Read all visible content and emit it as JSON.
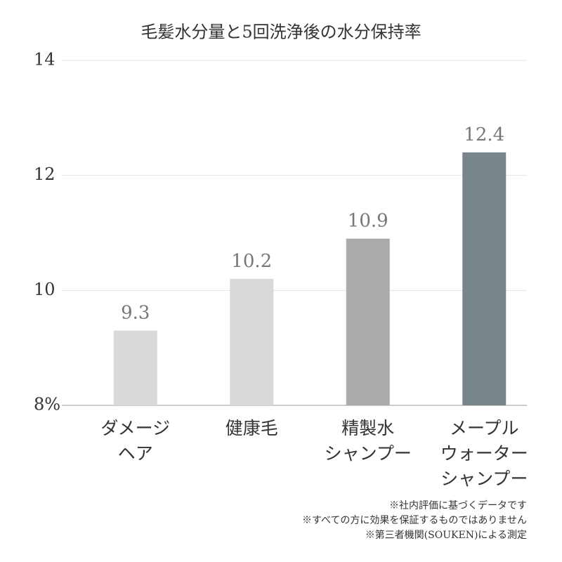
{
  "chart_data": {
    "type": "bar",
    "title": "毛髪水分量と5回洗浄後の水分保持率",
    "categories": [
      "ダメージ\nヘア",
      "健康毛",
      "精製水\nシャンプー",
      "メープル\nウォーター\nシャンプー"
    ],
    "values": [
      9.3,
      10.2,
      10.9,
      12.4
    ],
    "colors": [
      "#d9d9d9",
      "#d9d9d9",
      "#aaaaaa",
      "#78858a"
    ],
    "ylim": [
      8,
      14
    ],
    "yticks": [
      {
        "value": 8,
        "label": "8%"
      },
      10,
      12,
      14
    ],
    "grid": true,
    "notes": [
      "※社内評価に基づくデータです",
      "※すべての方に効果を保証するものではありません",
      "※第三者機関(SOUKEN)による測定"
    ]
  }
}
